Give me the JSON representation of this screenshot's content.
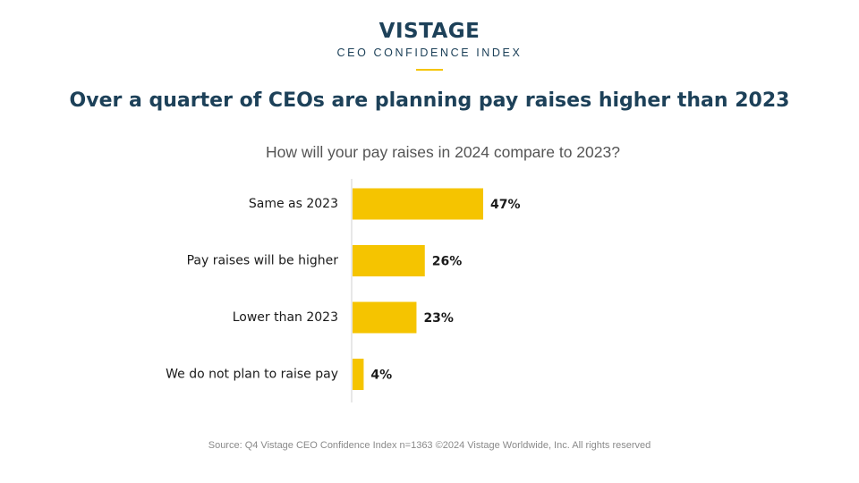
{
  "brand": {
    "name": "VISTAGE",
    "subtitle": "CEO CONFIDENCE INDEX",
    "accent_color": "#f5c400",
    "text_color": "#1d4159"
  },
  "headline": "Over a quarter of CEOs are planning pay raises higher than 2023",
  "chart_data": {
    "type": "bar",
    "orientation": "horizontal",
    "title": "How will your pay raises in 2024 compare to 2023?",
    "categories": [
      "Same as 2023",
      "Pay raises will be higher",
      "Lower than 2023",
      "We do not plan to raise pay"
    ],
    "values": [
      47,
      26,
      23,
      4
    ],
    "value_labels": [
      "47%",
      "26%",
      "23%",
      "4%"
    ],
    "unit": "%",
    "xlim": [
      0,
      100
    ],
    "bar_color": "#f5c400",
    "grid": false,
    "legend": "none"
  },
  "source": "Source: Q4 Vistage CEO Confidence Index n=1363 ©2024 Vistage Worldwide, Inc. All rights reserved"
}
